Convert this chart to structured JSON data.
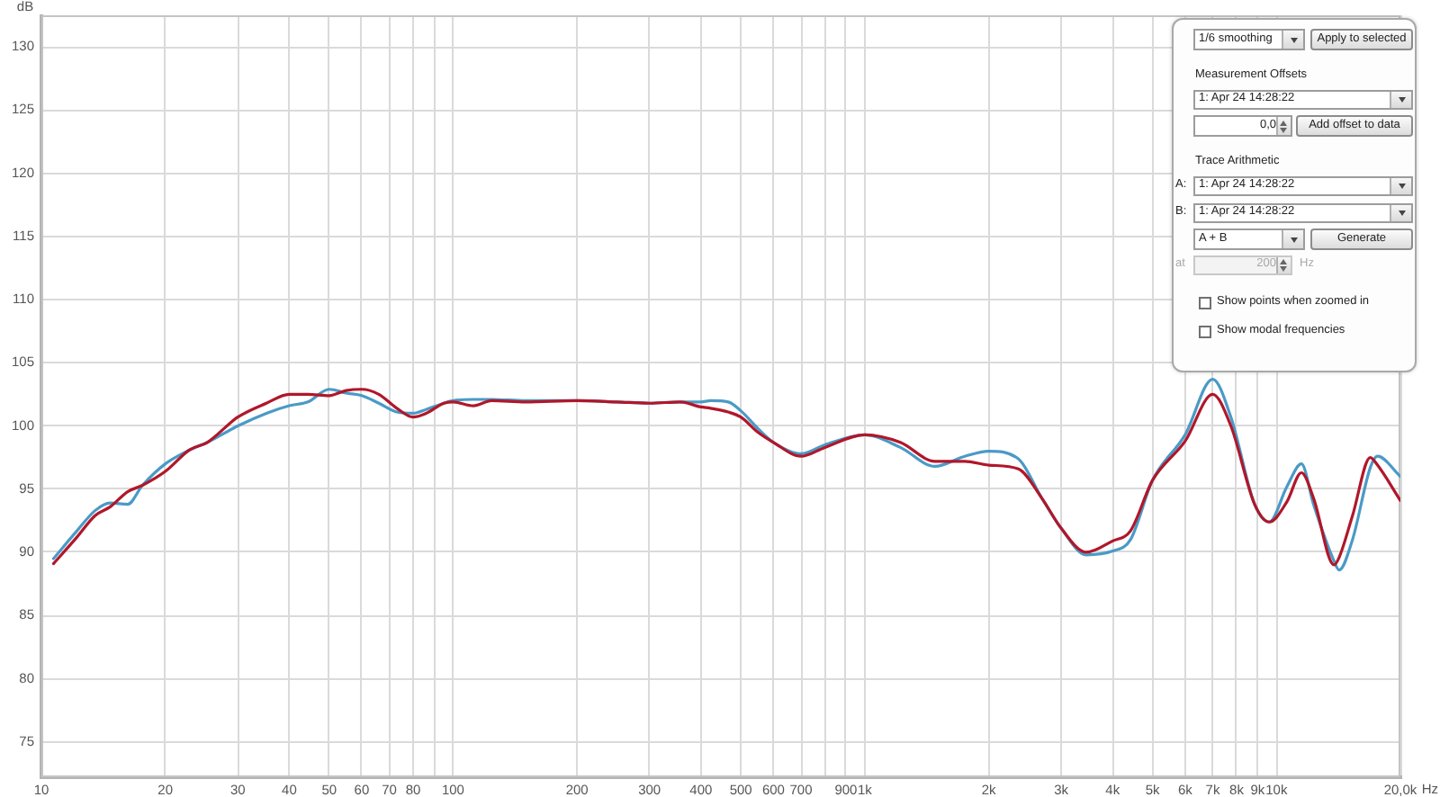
{
  "chart_data": {
    "type": "line",
    "ylabel": "dB",
    "xlabel": "Hz",
    "log": "x",
    "grid": true,
    "marker": "none",
    "line_style": "solid",
    "xlim": [
      10,
      20000
    ],
    "ylim": [
      72.2,
      132.5
    ],
    "xticks": [
      10,
      20,
      30,
      40,
      50,
      60,
      70,
      80,
      {
        "value": 90,
        "label": null
      },
      100,
      200,
      300,
      400,
      500,
      600,
      700,
      {
        "value": 800,
        "label": null
      },
      900,
      {
        "value": 1000,
        "label": "1k"
      },
      {
        "value": 2000,
        "label": "2k"
      },
      {
        "value": 3000,
        "label": "3k"
      },
      {
        "value": 4000,
        "label": "4k"
      },
      {
        "value": 5000,
        "label": "5k"
      },
      {
        "value": 6000,
        "label": "6k"
      },
      {
        "value": 7000,
        "label": "7k"
      },
      {
        "value": 8000,
        "label": "8k"
      },
      {
        "value": 9000,
        "label": "9k"
      },
      {
        "value": 10000,
        "label": "10k"
      },
      {
        "value": 20000,
        "label": "20,0k"
      }
    ],
    "yticks": [
      75,
      80,
      85,
      90,
      95,
      100,
      105,
      110,
      115,
      120,
      125,
      130
    ],
    "x": [
      10.7,
      12.2,
      13.5,
      14.7,
      16.2,
      17.6,
      20,
      22.9,
      25.3,
      30,
      35.2,
      40,
      44.4,
      50,
      55,
      60,
      66,
      73,
      80,
      86,
      95,
      100,
      112,
      124,
      150,
      200,
      250,
      300,
      356,
      400,
      422,
      466,
      500,
      550,
      600,
      700,
      800,
      1000,
      1220,
      1480,
      1750,
      2000,
      2360,
      2690,
      3000,
      3450,
      4000,
      4420,
      5000,
      6000,
      7000,
      7750,
      8850,
      9610,
      10600,
      11500,
      12300,
      13800,
      14200,
      15300,
      16900,
      17600,
      20000
    ],
    "series": [
      {
        "color": "#b0172a",
        "values": [
          89.1,
          91.2,
          92.9,
          93.6,
          94.8,
          95.3,
          96.4,
          98.1,
          98.7,
          100.7,
          101.8,
          102.5,
          102.5,
          102.4,
          102.8,
          102.9,
          102.5,
          101.4,
          100.7,
          101.0,
          101.8,
          101.9,
          101.6,
          102.0,
          101.9,
          102.0,
          101.9,
          101.8,
          101.9,
          101.5,
          101.4,
          101.1,
          100.7,
          99.5,
          98.7,
          97.6,
          98.3,
          99.3,
          98.7,
          97.2,
          97.2,
          96.9,
          96.6,
          94.3,
          91.9,
          90.0,
          90.9,
          91.7,
          95.7,
          98.8,
          102.5,
          100.0,
          93.8,
          92.4,
          94.0,
          96.3,
          94.3,
          89.0,
          89.6,
          92.9,
          97.5,
          96.9,
          94.1
        ]
      },
      {
        "color": "#4a9ac6",
        "values": [
          89.5,
          91.7,
          93.3,
          93.9,
          93.8,
          95.3,
          97.0,
          98.1,
          98.7,
          100.0,
          101.0,
          101.6,
          101.9,
          102.9,
          102.6,
          102.4,
          101.8,
          101.1,
          101.0,
          101.3,
          101.8,
          102.0,
          102.1,
          102.1,
          102.0,
          102.0,
          101.9,
          101.8,
          101.9,
          101.9,
          102.0,
          101.9,
          101.2,
          99.8,
          98.7,
          97.8,
          98.5,
          99.3,
          98.3,
          96.8,
          97.6,
          98.0,
          97.4,
          94.3,
          91.9,
          89.8,
          90.1,
          91.0,
          95.7,
          99.3,
          103.7,
          100.7,
          93.8,
          92.4,
          95.2,
          97.0,
          93.8,
          89.3,
          88.6,
          91.0,
          96.7,
          97.6,
          96.0
        ]
      }
    ],
    "annotations": [
      "1/6 smoothing",
      "Apply to selected",
      "Measurement Offsets",
      "1: Apr 24 14:28:22",
      "0,0",
      "Add offset to data",
      "Trace Arithmetic",
      "A:",
      "1: Apr 24 14:28:22",
      "B:",
      "1: Apr 24 14:28:22",
      "A + B",
      "Generate",
      "at",
      "200",
      "Hz",
      "Show points when zoomed in",
      "Show modal frequencies"
    ]
  }
}
